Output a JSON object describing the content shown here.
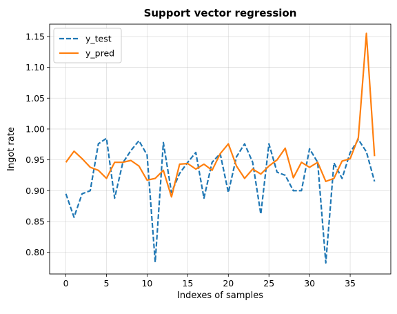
{
  "chart_data": {
    "type": "line",
    "title": "Support vector regression",
    "xlabel": "Indexes of samples",
    "ylabel": "Ingot rate",
    "xlim": [
      -2,
      40
    ],
    "ylim": [
      0.765,
      1.17
    ],
    "xticks": [
      0,
      5,
      10,
      15,
      20,
      25,
      30,
      35
    ],
    "yticks": [
      0.8,
      0.85,
      0.9,
      0.95,
      1.0,
      1.05,
      1.1,
      1.15
    ],
    "grid": true,
    "legend": "upper-left",
    "x": [
      0,
      1,
      2,
      3,
      4,
      5,
      6,
      7,
      8,
      9,
      10,
      11,
      12,
      13,
      14,
      15,
      16,
      17,
      18,
      19,
      20,
      21,
      22,
      23,
      24,
      25,
      26,
      27,
      28,
      29,
      30,
      31,
      32,
      33,
      34,
      35,
      36,
      37,
      38
    ],
    "series": [
      {
        "name": "y_test",
        "color": "#1f77b4",
        "style": "dashed",
        "values": [
          0.895,
          0.857,
          0.895,
          0.9,
          0.976,
          0.985,
          0.888,
          0.945,
          0.965,
          0.981,
          0.958,
          0.784,
          0.978,
          0.897,
          0.928,
          0.946,
          0.962,
          0.888,
          0.946,
          0.96,
          0.897,
          0.955,
          0.976,
          0.946,
          0.862,
          0.976,
          0.93,
          0.925,
          0.9,
          0.9,
          0.968,
          0.946,
          0.783,
          0.945,
          0.92,
          0.962,
          0.983,
          0.963,
          0.915
        ]
      },
      {
        "name": "y_pred",
        "color": "#ff7f0e",
        "style": "solid",
        "values": [
          0.946,
          0.964,
          0.952,
          0.938,
          0.933,
          0.92,
          0.946,
          0.946,
          0.949,
          0.94,
          0.917,
          0.92,
          0.933,
          0.89,
          0.943,
          0.944,
          0.935,
          0.943,
          0.933,
          0.96,
          0.976,
          0.94,
          0.92,
          0.935,
          0.927,
          0.94,
          0.95,
          0.969,
          0.921,
          0.946,
          0.938,
          0.946,
          0.915,
          0.92,
          0.948,
          0.952,
          0.986,
          1.155,
          0.956
        ]
      }
    ]
  }
}
